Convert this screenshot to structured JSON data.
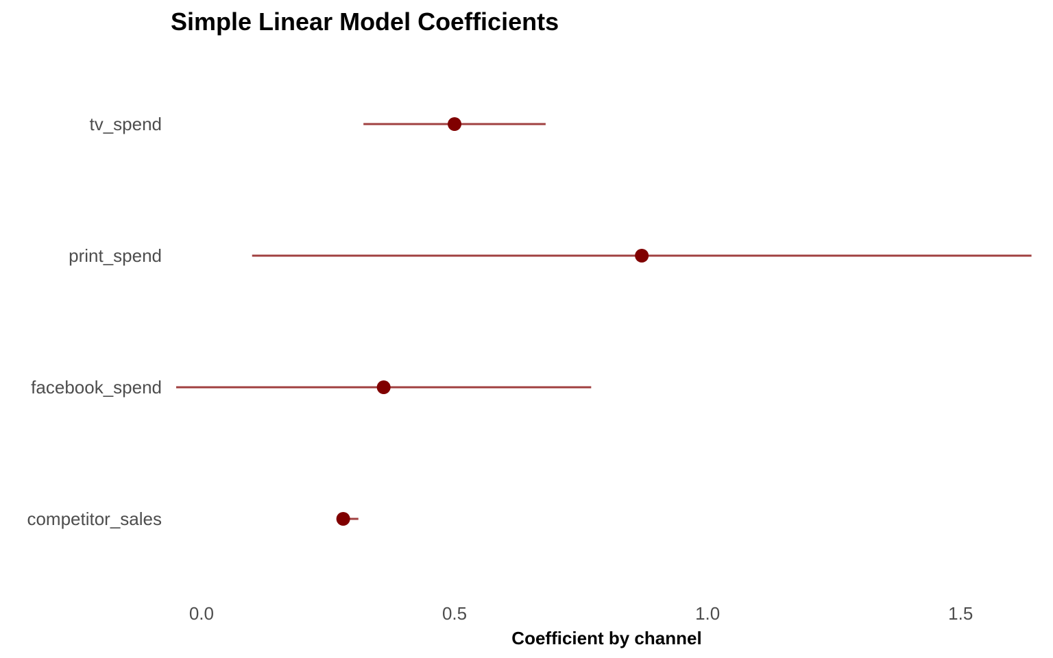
{
  "chart_data": {
    "type": "scatter",
    "title": "Simple Linear Model Coefficients",
    "xlabel": "Coefficient by channel",
    "ylabel": "",
    "xlim": [
      -0.05,
      1.65
    ],
    "x_ticks": [
      0.0,
      0.5,
      1.0,
      1.5
    ],
    "x_tick_labels": [
      "0.0",
      "0.5",
      "1.0",
      "1.5"
    ],
    "categories": [
      "tv_spend",
      "print_spend",
      "facebook_spend",
      "competitor_sales"
    ],
    "series": [
      {
        "estimate": [
          0.5,
          0.87,
          0.36,
          0.28
        ],
        "lower": [
          0.32,
          0.1,
          -0.05,
          0.27
        ],
        "upper": [
          0.68,
          1.64,
          0.77,
          0.31
        ]
      }
    ],
    "grid": false,
    "legend": "none",
    "colors": {
      "point": "#800000",
      "interval": "#a04040"
    }
  }
}
